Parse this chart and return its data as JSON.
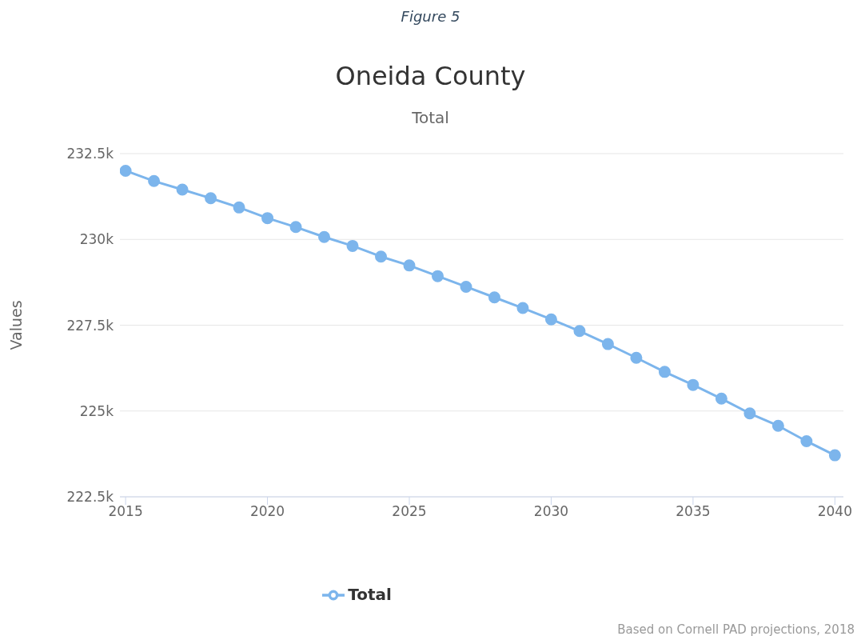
{
  "chart_data": {
    "type": "line",
    "title": "Oneida County",
    "subtitle": "Total",
    "ylabel": "Values",
    "annotations": [
      "Figure 5",
      "Based on Cornell PAD projections, 2018"
    ],
    "x": [
      2015,
      2016,
      2017,
      2018,
      2019,
      2020,
      2021,
      2022,
      2023,
      2024,
      2025,
      2026,
      2027,
      2028,
      2029,
      2030,
      2031,
      2032,
      2033,
      2034,
      2035,
      2036,
      2037,
      2038,
      2039,
      2040
    ],
    "series": [
      {
        "name": "Total",
        "color": "#7cb5ec",
        "values": [
          232000,
          231700,
          231450,
          231200,
          230930,
          230620,
          230360,
          230070,
          229810,
          229500,
          229240,
          228930,
          228620,
          228310,
          228000,
          227670,
          227330,
          226950,
          226550,
          226140,
          225760,
          225360,
          224930,
          224570,
          224120,
          223710
        ]
      }
    ],
    "xlim": [
      2014.8,
      2040.3
    ],
    "xticks": [
      2015,
      2020,
      2025,
      2030,
      2035,
      2040
    ],
    "ylim": [
      222500,
      232500
    ],
    "yticks": [
      {
        "value": 222500,
        "label": "222.5k"
      },
      {
        "value": 225000,
        "label": "225k"
      },
      {
        "value": 227500,
        "label": "227.5k"
      },
      {
        "value": 230000,
        "label": "230k"
      },
      {
        "value": 232500,
        "label": "232.5k"
      }
    ],
    "grid": "y",
    "legend": "bottom",
    "marker": "circle",
    "line_style": "solid"
  }
}
